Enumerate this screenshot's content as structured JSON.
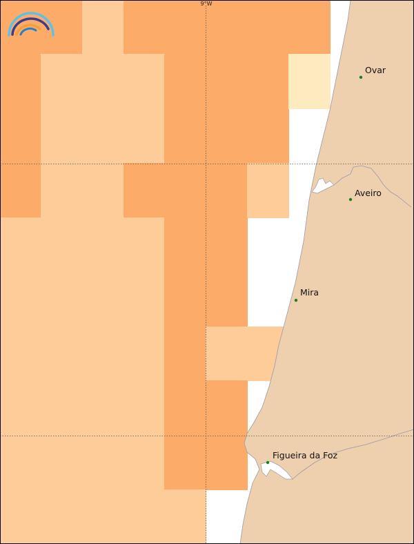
{
  "map": {
    "grid_label": "9°W",
    "cities": [
      {
        "name": "Ovar"
      },
      {
        "name": "Aveiro"
      },
      {
        "name": "Mira"
      },
      {
        "name": "Figueira da Foz"
      }
    ],
    "colors": {
      "ocean": "#ffffff",
      "land": "#eecfae",
      "coast_line": "#9a9aa8",
      "cell_dark": "#fdab69",
      "cell_light": "#fdcc98",
      "cell_pale": "#feeabf",
      "city_dot": "#1a7f1a"
    },
    "logo": {
      "icon": "rainbow-arc-logo-icon"
    }
  }
}
